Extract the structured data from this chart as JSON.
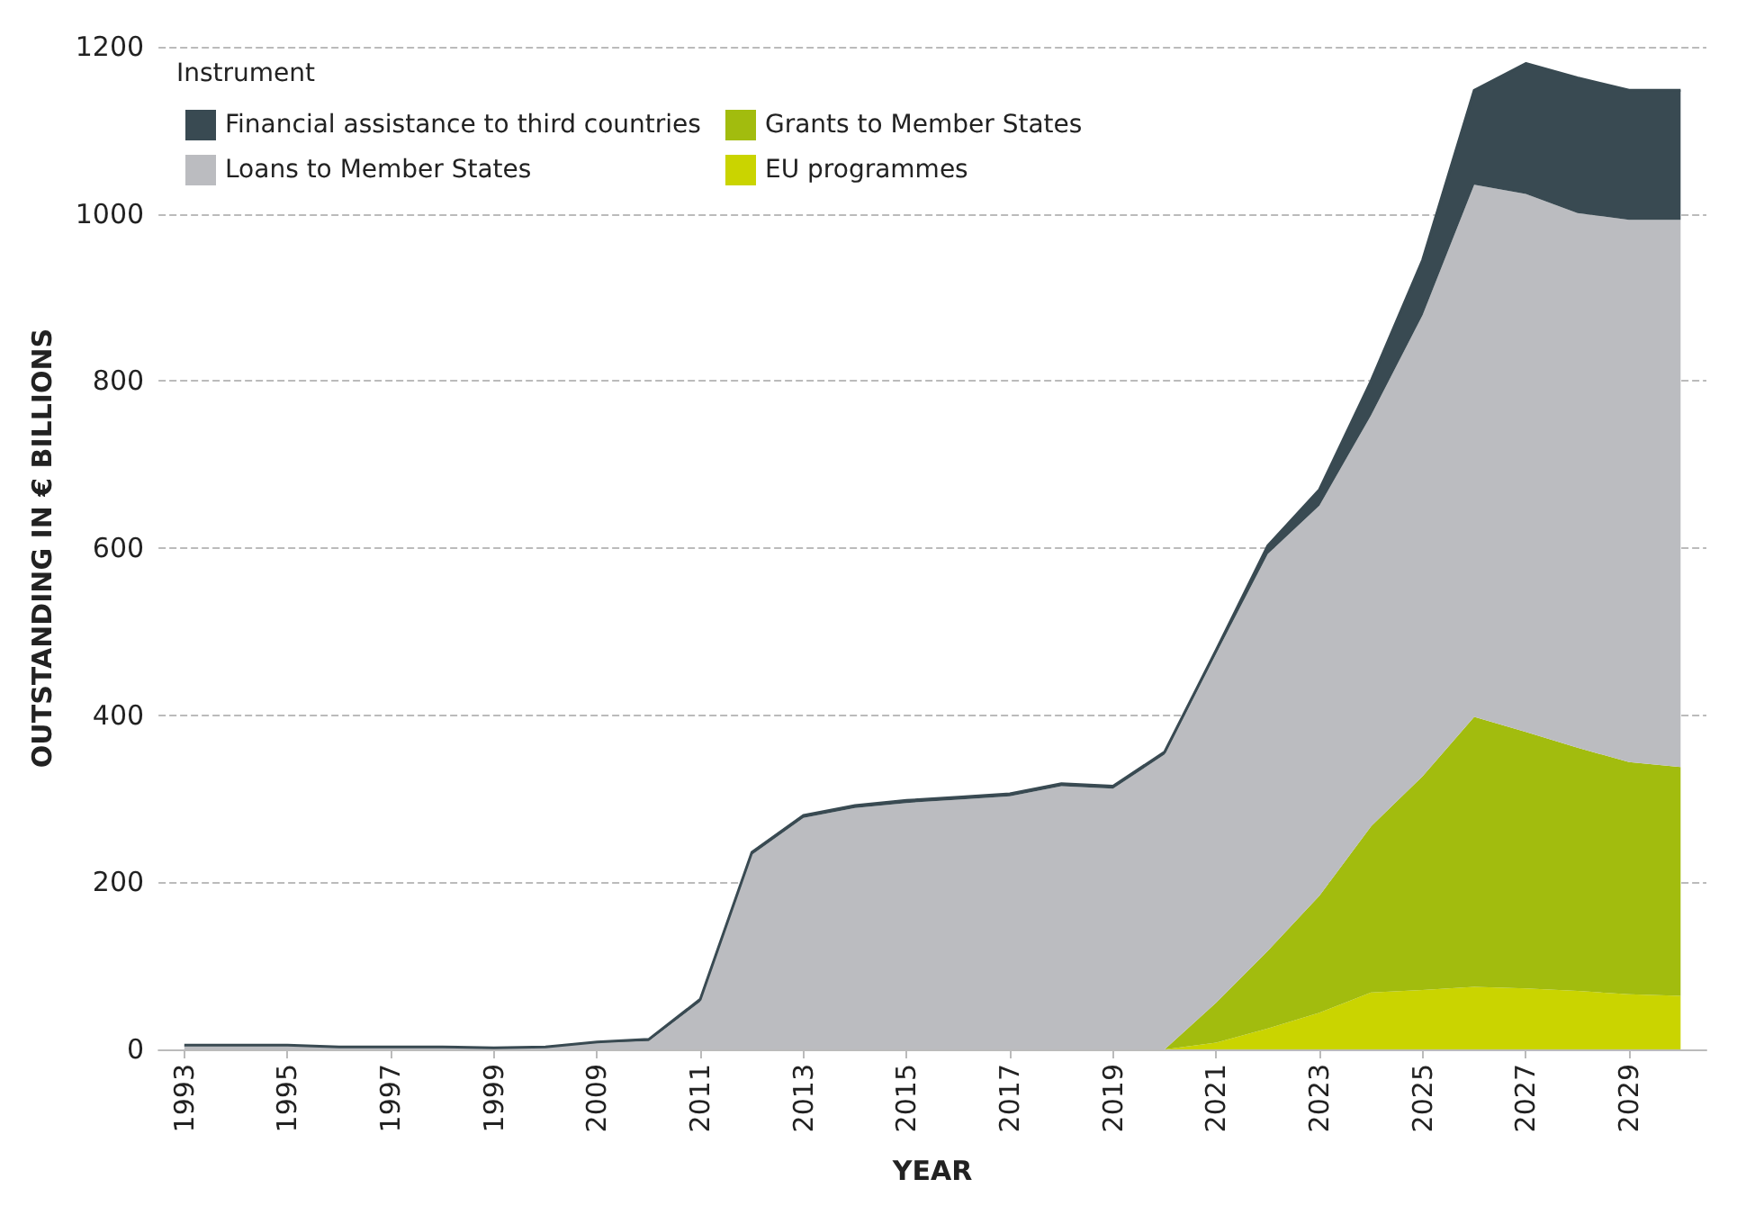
{
  "chart_data": {
    "type": "area",
    "stacked": true,
    "xlabel": "YEAR",
    "ylabel": "OUTSTANDING IN € BILLIONS",
    "legend_title": "Instrument",
    "legend": "top left",
    "grid": "y",
    "marker": "none",
    "categories": [
      "1993",
      null,
      "1995",
      null,
      "1997",
      null,
      "1999",
      null,
      "2009",
      null,
      "2011",
      null,
      "2013",
      null,
      "2015",
      null,
      "2017",
      null,
      "2019",
      null,
      "2021",
      null,
      "2023",
      null,
      "2025",
      null,
      "2027",
      null,
      "2029",
      null
    ],
    "ylim": [
      0,
      1200
    ],
    "yticks": [
      0,
      200,
      400,
      600,
      800,
      1000,
      1200
    ],
    "series": [
      {
        "name": "EU programmes",
        "color": "#cad400",
        "values": [
          0,
          0,
          0,
          0,
          0,
          0,
          0,
          0,
          0,
          0,
          0,
          0,
          0,
          0,
          0,
          0,
          0,
          0,
          0,
          0,
          8,
          25,
          44,
          68,
          71,
          75,
          73,
          70,
          66,
          64
        ]
      },
      {
        "name": "Grants to Member States",
        "color": "#a2bc0e",
        "values": [
          0,
          0,
          0,
          0,
          0,
          0,
          0,
          0,
          0,
          0,
          0,
          0,
          0,
          0,
          0,
          0,
          0,
          0,
          0,
          0,
          48,
          93,
          140,
          199,
          256,
          323,
          307,
          291,
          278,
          274
        ]
      },
      {
        "name": "Loans to Member States",
        "color": "#bbbcc0",
        "values": [
          5,
          5,
          5,
          3,
          3,
          3,
          2,
          3,
          8,
          10,
          57,
          233,
          277,
          289,
          295,
          299,
          303,
          315,
          312,
          353,
          418,
          475,
          467,
          492,
          552,
          637,
          644,
          640,
          649,
          655
        ]
      },
      {
        "name": "Financial assistance to third countries",
        "color": "#394a52",
        "values": [
          0,
          0,
          0,
          0,
          0,
          0,
          0,
          0,
          1,
          2,
          3,
          3,
          3,
          3,
          3,
          3,
          3,
          3,
          3,
          3,
          4,
          10,
          19,
          41,
          66,
          113,
          156,
          162,
          155,
          155
        ]
      }
    ]
  }
}
